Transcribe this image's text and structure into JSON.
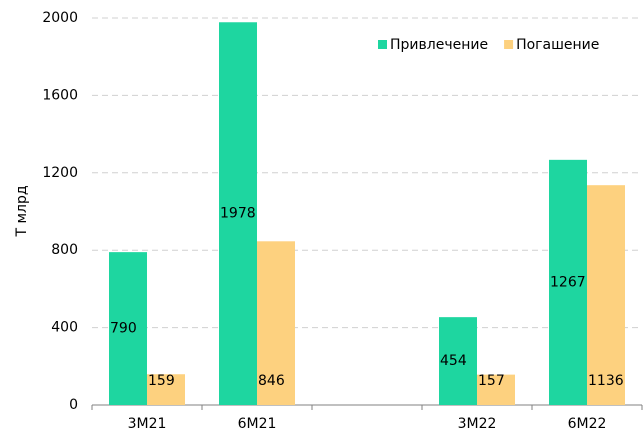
{
  "chart_data": {
    "type": "bar",
    "ylabel": "Т млрд",
    "categories": [
      "3M21",
      "6M21",
      null,
      "3M22",
      "6M22"
    ],
    "series": [
      {
        "name": "Привлечение",
        "color": "#1ed6a0",
        "values": [
          790,
          1978,
          null,
          454,
          1267
        ]
      },
      {
        "name": "Погашение",
        "color": "#fdd17f",
        "values": [
          159,
          846,
          null,
          157,
          1136
        ]
      }
    ],
    "ylim": [
      0,
      2000
    ],
    "yticks": [
      0,
      400,
      800,
      1200,
      1600,
      2000
    ],
    "grid": true,
    "legend": "upper right"
  }
}
